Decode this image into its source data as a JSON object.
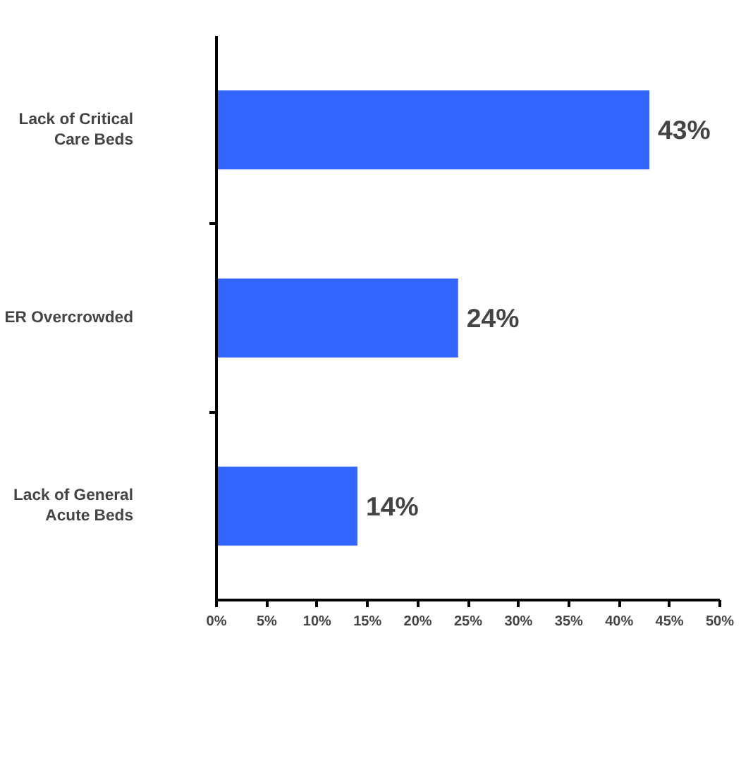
{
  "chart_data": {
    "type": "bar",
    "orientation": "horizontal",
    "categories": [
      "Lack of Critical Care Beds",
      "ER Overcrowded",
      "Lack of General Acute Beds"
    ],
    "values": [
      43,
      24,
      14
    ],
    "color": "#3366ff",
    "value_labels": [
      "43%",
      "24%",
      "14%"
    ],
    "xlim": [
      0,
      50
    ],
    "xticks": [
      {
        "value": 0,
        "label": "0%"
      },
      {
        "value": 5,
        "label": "5%"
      },
      {
        "value": 10,
        "label": "10%"
      },
      {
        "value": 15,
        "label": "15%"
      },
      {
        "value": 20,
        "label": "20%"
      },
      {
        "value": 25,
        "label": "25%"
      },
      {
        "value": 30,
        "label": "30%"
      },
      {
        "value": 35,
        "label": "35%"
      },
      {
        "value": 40,
        "label": "40%"
      },
      {
        "value": 45,
        "label": "45%"
      },
      {
        "value": 50,
        "label": "50%"
      }
    ],
    "grid": false
  }
}
